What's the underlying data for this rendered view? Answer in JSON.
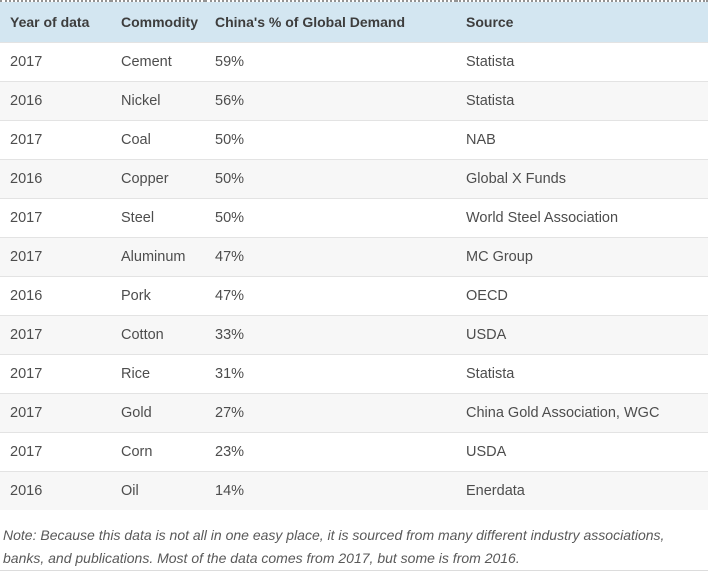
{
  "chart_data": {
    "type": "table",
    "title": "",
    "columns": [
      "Year of data",
      "Commodity",
      "China's % of Global Demand",
      "Source"
    ],
    "rows": [
      [
        "2017",
        "Cement",
        "59%",
        "Statista"
      ],
      [
        "2016",
        "Nickel",
        "56%",
        "Statista"
      ],
      [
        "2017",
        "Coal",
        "50%",
        "NAB"
      ],
      [
        "2016",
        "Copper",
        "50%",
        "Global X Funds"
      ],
      [
        "2017",
        "Steel",
        "50%",
        "World Steel Association"
      ],
      [
        "2017",
        "Aluminum",
        "47%",
        "MC Group"
      ],
      [
        "2016",
        "Pork",
        "47%",
        "OECD"
      ],
      [
        "2017",
        "Cotton",
        "33%",
        "USDA"
      ],
      [
        "2017",
        "Rice",
        "31%",
        "Statista"
      ],
      [
        "2017",
        "Gold",
        "27%",
        "China Gold Association, WGC"
      ],
      [
        "2017",
        "Corn",
        "23%",
        "USDA"
      ],
      [
        "2016",
        "Oil",
        "14%",
        "Enerdata"
      ]
    ],
    "percent_values": [
      59,
      56,
      50,
      50,
      50,
      47,
      47,
      33,
      31,
      27,
      23,
      14
    ],
    "layout": {
      "striped": true,
      "stripe_on": "even-rows",
      "grid": "horizontal-only"
    }
  },
  "note": {
    "text": "Note: Because this data is not all in one easy place, it is sourced from many different industry associations, banks, and publications. Most of the data comes from 2017, but some is from 2016."
  },
  "colors": {
    "header_bg": "#d3e6f1",
    "header_text": "#3d3d3d",
    "cell_text": "#4d4d4d",
    "row_stripe": "#f7f7f7",
    "row_border": "#e3e3e3",
    "top_border_dotted": "#939393",
    "note_text": "#595959"
  }
}
